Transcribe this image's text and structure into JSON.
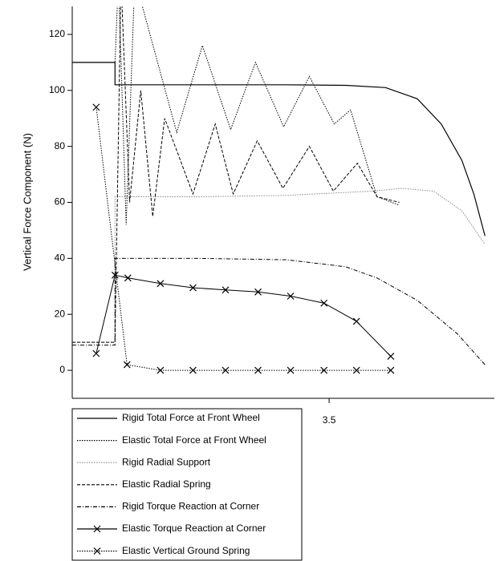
{
  "chart_data": {
    "type": "line",
    "ylabel": "Vertical Force Component (N)",
    "xlim": [
      0.5,
      5.43
    ],
    "xticks": [
      3.5
    ],
    "ylim": [
      -10,
      130
    ],
    "yticks": [
      0,
      20,
      40,
      60,
      80,
      100,
      120
    ],
    "series": [
      {
        "name": "Rigid Total Force at Front Wheel",
        "color": "#000000",
        "line_style": "solid",
        "marker": "none",
        "x": [
          0.5,
          1.0,
          1.0,
          2.0,
          3.0,
          3.7,
          4.16,
          4.53,
          4.81,
          5.05,
          5.19,
          5.32
        ],
        "values": [
          110,
          110,
          102,
          102,
          102,
          101.8,
          101,
          97,
          88,
          75,
          63,
          48
        ]
      },
      {
        "name": "Elastic Total Force at Front Wheel",
        "color": "#000000",
        "line_style": "dotted",
        "marker": "none",
        "x": [
          0.5,
          1.0,
          1.04,
          1.13,
          1.23,
          1.39,
          1.72,
          2.02,
          2.35,
          2.64,
          2.97,
          3.27,
          3.56,
          3.75,
          4.06,
          4.32
        ],
        "values": [
          110,
          110,
          140,
          52,
          140,
          122,
          85,
          116,
          86,
          110,
          87,
          105,
          88,
          93,
          62,
          59
        ]
      },
      {
        "name": "Rigid Radial Support",
        "color": "#888888",
        "line_style": "dotted",
        "marker": "none",
        "x": [
          0.5,
          1.0,
          1.0,
          2.0,
          3.0,
          4.0,
          4.35,
          4.72,
          5.05,
          5.32
        ],
        "values": [
          10,
          10,
          62,
          62,
          62.5,
          64,
          65,
          64,
          57,
          45
        ]
      },
      {
        "name": "Elastic Radial Spring",
        "color": "#000000",
        "line_style": "dashed",
        "marker": "none",
        "x": [
          0.5,
          1.0,
          1.07,
          1.17,
          1.3,
          1.44,
          1.58,
          1.91,
          2.17,
          2.38,
          2.66,
          2.96,
          3.27,
          3.55,
          3.83,
          4.06,
          4.32
        ],
        "values": [
          10,
          10,
          140,
          60,
          100,
          55,
          90,
          63,
          88,
          63,
          82,
          65,
          80,
          64,
          74,
          62,
          60
        ]
      },
      {
        "name": "Rigid Torque Reaction at Corner",
        "color": "#000000",
        "line_style": "dashdot",
        "marker": "none",
        "x": [
          0.5,
          1.0,
          1.0,
          2.0,
          3.0,
          3.69,
          4.06,
          4.53,
          5.0,
          5.32
        ],
        "values": [
          9,
          9,
          40,
          40,
          39.5,
          37,
          33,
          25,
          13,
          2
        ]
      },
      {
        "name": "Elastic Torque Reaction at Corner",
        "color": "#000000",
        "line_style": "solid",
        "marker": "x",
        "x": [
          0.78,
          1.0,
          1.15,
          1.53,
          1.91,
          2.29,
          2.67,
          3.05,
          3.44,
          3.82,
          4.22
        ],
        "values": [
          6,
          34,
          33,
          31,
          29.5,
          28.7,
          28,
          26.5,
          24,
          17.5,
          5
        ]
      },
      {
        "name": "Elastic Vertical Ground Spring",
        "color": "#000000",
        "line_style": "dotted",
        "marker": "x",
        "x": [
          0.78,
          1.14,
          1.53,
          1.91,
          2.29,
          2.67,
          3.05,
          3.44,
          3.82,
          4.22
        ],
        "values": [
          94,
          2,
          0,
          0,
          0,
          0,
          0,
          0,
          0,
          0
        ]
      }
    ]
  }
}
